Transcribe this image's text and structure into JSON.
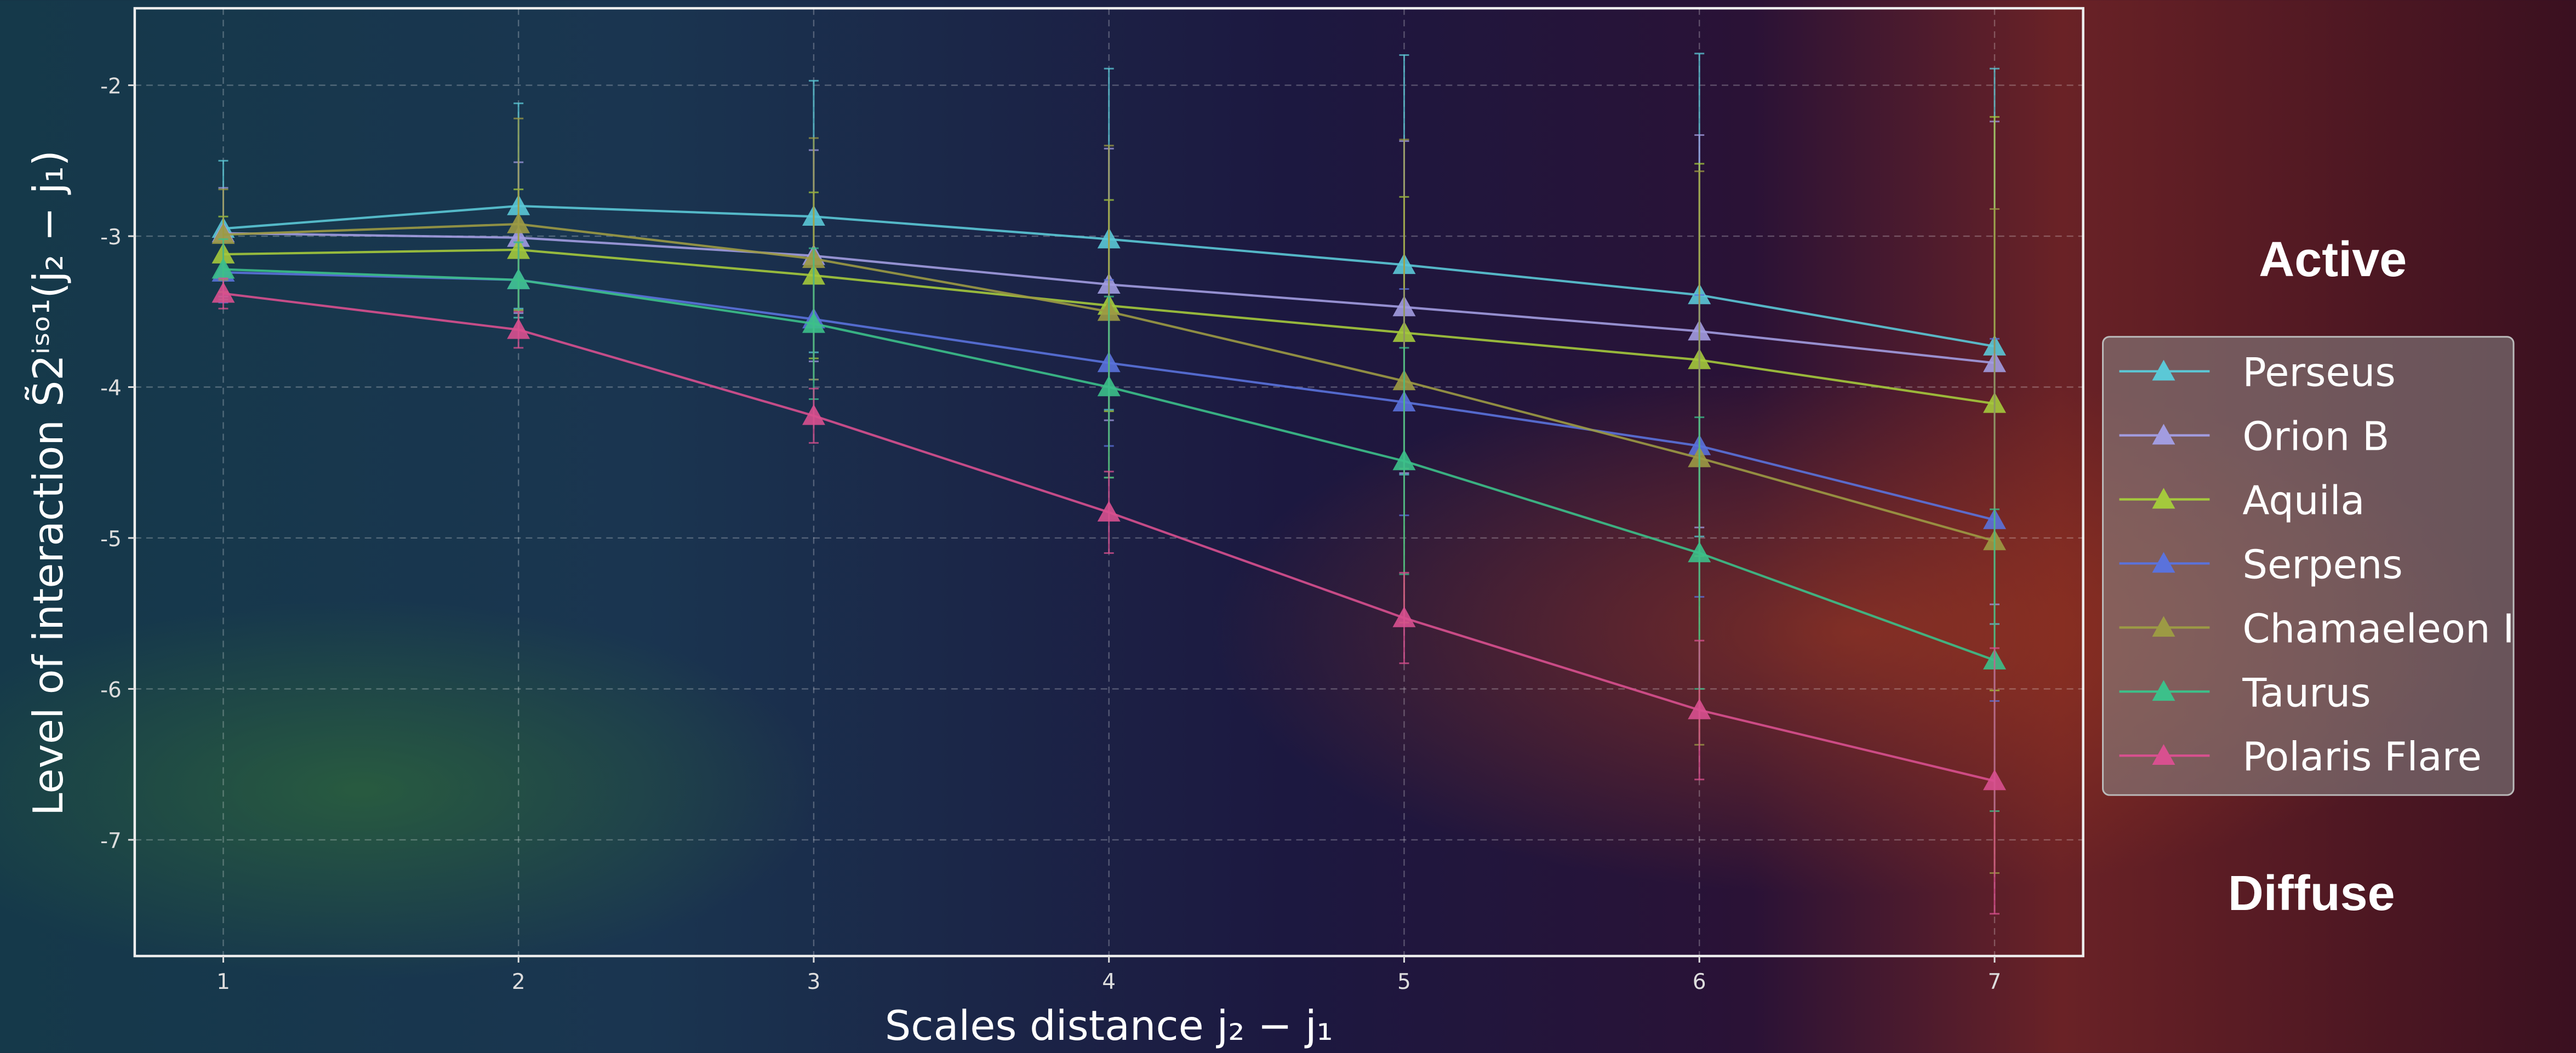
{
  "chart_data": {
    "type": "line",
    "xlabel": "Scales distance j₂ − j₁",
    "ylabel": "Level of interaction S̃2ⁱˢᵒ¹(j₂ − j₁)",
    "annotations": [
      "Active",
      "Diffuse"
    ],
    "x": [
      1,
      2,
      3,
      4,
      5,
      6,
      7
    ],
    "xlim": [
      0.7,
      7.3
    ],
    "xticks": [
      1,
      2,
      3,
      4,
      5,
      6,
      7
    ],
    "ylim": [
      -7.77,
      -1.49
    ],
    "yticks": [
      -7,
      -6,
      -5,
      -4,
      -3,
      -2
    ],
    "grid": true,
    "legend": "right",
    "series": [
      {
        "name": "Perseus",
        "color": "#5bc8d6",
        "values": [
          -2.95,
          -2.8,
          -2.87,
          -3.02,
          -3.19,
          -3.39,
          -3.73
        ],
        "errors": [
          0.45,
          0.68,
          0.9,
          1.13,
          1.39,
          1.6,
          1.84
        ]
      },
      {
        "name": "Orion B",
        "color": "#a29ce0",
        "values": [
          -2.98,
          -3.01,
          -3.13,
          -3.32,
          -3.47,
          -3.63,
          -3.84
        ],
        "errors": [
          0.3,
          0.5,
          0.7,
          0.9,
          1.1,
          1.3,
          1.6
        ]
      },
      {
        "name": "Aquila",
        "color": "#a4c93c",
        "values": [
          -3.12,
          -3.09,
          -3.26,
          -3.46,
          -3.64,
          -3.82,
          -4.11
        ],
        "errors": [
          0.25,
          0.4,
          0.55,
          0.7,
          0.9,
          1.3,
          1.9
        ]
      },
      {
        "name": "Serpens",
        "color": "#5a72dc",
        "values": [
          -3.24,
          -3.29,
          -3.55,
          -3.84,
          -4.1,
          -4.39,
          -4.88
        ],
        "errors": [
          0.2,
          0.25,
          0.4,
          0.55,
          0.75,
          1.0,
          1.2
        ]
      },
      {
        "name": "Chamaeleon I",
        "color": "#9c9a44",
        "values": [
          -2.99,
          -2.92,
          -3.15,
          -3.5,
          -3.96,
          -4.47,
          -5.02
        ],
        "errors": [
          0.3,
          0.7,
          0.8,
          1.1,
          1.6,
          1.9,
          2.2
        ]
      },
      {
        "name": "Taurus",
        "color": "#3cc08a",
        "values": [
          -3.22,
          -3.29,
          -3.58,
          -4.0,
          -4.49,
          -5.1,
          -5.81
        ],
        "errors": [
          0.2,
          0.25,
          0.5,
          0.6,
          0.75,
          0.9,
          1.0
        ]
      },
      {
        "name": "Polaris Flare",
        "color": "#d8508f",
        "values": [
          -3.38,
          -3.62,
          -4.19,
          -4.83,
          -5.53,
          -6.14,
          -6.61
        ],
        "errors": [
          0.1,
          0.12,
          0.18,
          0.27,
          0.3,
          0.46,
          0.88
        ]
      }
    ]
  }
}
